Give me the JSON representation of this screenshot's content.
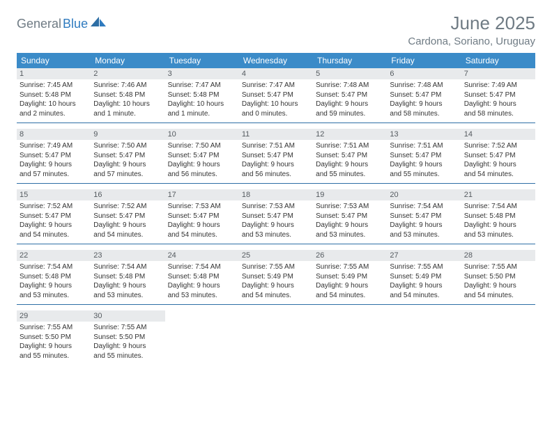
{
  "logo": {
    "part1": "General",
    "part2": "Blue"
  },
  "title": "June 2025",
  "location": "Cardona, Soriano, Uruguay",
  "colors": {
    "header_bg": "#3b8bc8",
    "header_fg": "#ffffff",
    "daynum_bg": "#e8eaec",
    "daynum_fg": "#555b60",
    "rule": "#2d6ea5",
    "title_color": "#6f7b84",
    "logo_blue": "#2f7bbf"
  },
  "day_headers": [
    "Sunday",
    "Monday",
    "Tuesday",
    "Wednesday",
    "Thursday",
    "Friday",
    "Saturday"
  ],
  "weeks": [
    [
      {
        "n": "1",
        "sunrise": "Sunrise: 7:45 AM",
        "sunset": "Sunset: 5:48 PM",
        "d1": "Daylight: 10 hours",
        "d2": "and 2 minutes."
      },
      {
        "n": "2",
        "sunrise": "Sunrise: 7:46 AM",
        "sunset": "Sunset: 5:48 PM",
        "d1": "Daylight: 10 hours",
        "d2": "and 1 minute."
      },
      {
        "n": "3",
        "sunrise": "Sunrise: 7:47 AM",
        "sunset": "Sunset: 5:48 PM",
        "d1": "Daylight: 10 hours",
        "d2": "and 1 minute."
      },
      {
        "n": "4",
        "sunrise": "Sunrise: 7:47 AM",
        "sunset": "Sunset: 5:47 PM",
        "d1": "Daylight: 10 hours",
        "d2": "and 0 minutes."
      },
      {
        "n": "5",
        "sunrise": "Sunrise: 7:48 AM",
        "sunset": "Sunset: 5:47 PM",
        "d1": "Daylight: 9 hours",
        "d2": "and 59 minutes."
      },
      {
        "n": "6",
        "sunrise": "Sunrise: 7:48 AM",
        "sunset": "Sunset: 5:47 PM",
        "d1": "Daylight: 9 hours",
        "d2": "and 58 minutes."
      },
      {
        "n": "7",
        "sunrise": "Sunrise: 7:49 AM",
        "sunset": "Sunset: 5:47 PM",
        "d1": "Daylight: 9 hours",
        "d2": "and 58 minutes."
      }
    ],
    [
      {
        "n": "8",
        "sunrise": "Sunrise: 7:49 AM",
        "sunset": "Sunset: 5:47 PM",
        "d1": "Daylight: 9 hours",
        "d2": "and 57 minutes."
      },
      {
        "n": "9",
        "sunrise": "Sunrise: 7:50 AM",
        "sunset": "Sunset: 5:47 PM",
        "d1": "Daylight: 9 hours",
        "d2": "and 57 minutes."
      },
      {
        "n": "10",
        "sunrise": "Sunrise: 7:50 AM",
        "sunset": "Sunset: 5:47 PM",
        "d1": "Daylight: 9 hours",
        "d2": "and 56 minutes."
      },
      {
        "n": "11",
        "sunrise": "Sunrise: 7:51 AM",
        "sunset": "Sunset: 5:47 PM",
        "d1": "Daylight: 9 hours",
        "d2": "and 56 minutes."
      },
      {
        "n": "12",
        "sunrise": "Sunrise: 7:51 AM",
        "sunset": "Sunset: 5:47 PM",
        "d1": "Daylight: 9 hours",
        "d2": "and 55 minutes."
      },
      {
        "n": "13",
        "sunrise": "Sunrise: 7:51 AM",
        "sunset": "Sunset: 5:47 PM",
        "d1": "Daylight: 9 hours",
        "d2": "and 55 minutes."
      },
      {
        "n": "14",
        "sunrise": "Sunrise: 7:52 AM",
        "sunset": "Sunset: 5:47 PM",
        "d1": "Daylight: 9 hours",
        "d2": "and 54 minutes."
      }
    ],
    [
      {
        "n": "15",
        "sunrise": "Sunrise: 7:52 AM",
        "sunset": "Sunset: 5:47 PM",
        "d1": "Daylight: 9 hours",
        "d2": "and 54 minutes."
      },
      {
        "n": "16",
        "sunrise": "Sunrise: 7:52 AM",
        "sunset": "Sunset: 5:47 PM",
        "d1": "Daylight: 9 hours",
        "d2": "and 54 minutes."
      },
      {
        "n": "17",
        "sunrise": "Sunrise: 7:53 AM",
        "sunset": "Sunset: 5:47 PM",
        "d1": "Daylight: 9 hours",
        "d2": "and 54 minutes."
      },
      {
        "n": "18",
        "sunrise": "Sunrise: 7:53 AM",
        "sunset": "Sunset: 5:47 PM",
        "d1": "Daylight: 9 hours",
        "d2": "and 53 minutes."
      },
      {
        "n": "19",
        "sunrise": "Sunrise: 7:53 AM",
        "sunset": "Sunset: 5:47 PM",
        "d1": "Daylight: 9 hours",
        "d2": "and 53 minutes."
      },
      {
        "n": "20",
        "sunrise": "Sunrise: 7:54 AM",
        "sunset": "Sunset: 5:47 PM",
        "d1": "Daylight: 9 hours",
        "d2": "and 53 minutes."
      },
      {
        "n": "21",
        "sunrise": "Sunrise: 7:54 AM",
        "sunset": "Sunset: 5:48 PM",
        "d1": "Daylight: 9 hours",
        "d2": "and 53 minutes."
      }
    ],
    [
      {
        "n": "22",
        "sunrise": "Sunrise: 7:54 AM",
        "sunset": "Sunset: 5:48 PM",
        "d1": "Daylight: 9 hours",
        "d2": "and 53 minutes."
      },
      {
        "n": "23",
        "sunrise": "Sunrise: 7:54 AM",
        "sunset": "Sunset: 5:48 PM",
        "d1": "Daylight: 9 hours",
        "d2": "and 53 minutes."
      },
      {
        "n": "24",
        "sunrise": "Sunrise: 7:54 AM",
        "sunset": "Sunset: 5:48 PM",
        "d1": "Daylight: 9 hours",
        "d2": "and 53 minutes."
      },
      {
        "n": "25",
        "sunrise": "Sunrise: 7:55 AM",
        "sunset": "Sunset: 5:49 PM",
        "d1": "Daylight: 9 hours",
        "d2": "and 54 minutes."
      },
      {
        "n": "26",
        "sunrise": "Sunrise: 7:55 AM",
        "sunset": "Sunset: 5:49 PM",
        "d1": "Daylight: 9 hours",
        "d2": "and 54 minutes."
      },
      {
        "n": "27",
        "sunrise": "Sunrise: 7:55 AM",
        "sunset": "Sunset: 5:49 PM",
        "d1": "Daylight: 9 hours",
        "d2": "and 54 minutes."
      },
      {
        "n": "28",
        "sunrise": "Sunrise: 7:55 AM",
        "sunset": "Sunset: 5:50 PM",
        "d1": "Daylight: 9 hours",
        "d2": "and 54 minutes."
      }
    ],
    [
      {
        "n": "29",
        "sunrise": "Sunrise: 7:55 AM",
        "sunset": "Sunset: 5:50 PM",
        "d1": "Daylight: 9 hours",
        "d2": "and 55 minutes."
      },
      {
        "n": "30",
        "sunrise": "Sunrise: 7:55 AM",
        "sunset": "Sunset: 5:50 PM",
        "d1": "Daylight: 9 hours",
        "d2": "and 55 minutes."
      },
      null,
      null,
      null,
      null,
      null
    ]
  ]
}
